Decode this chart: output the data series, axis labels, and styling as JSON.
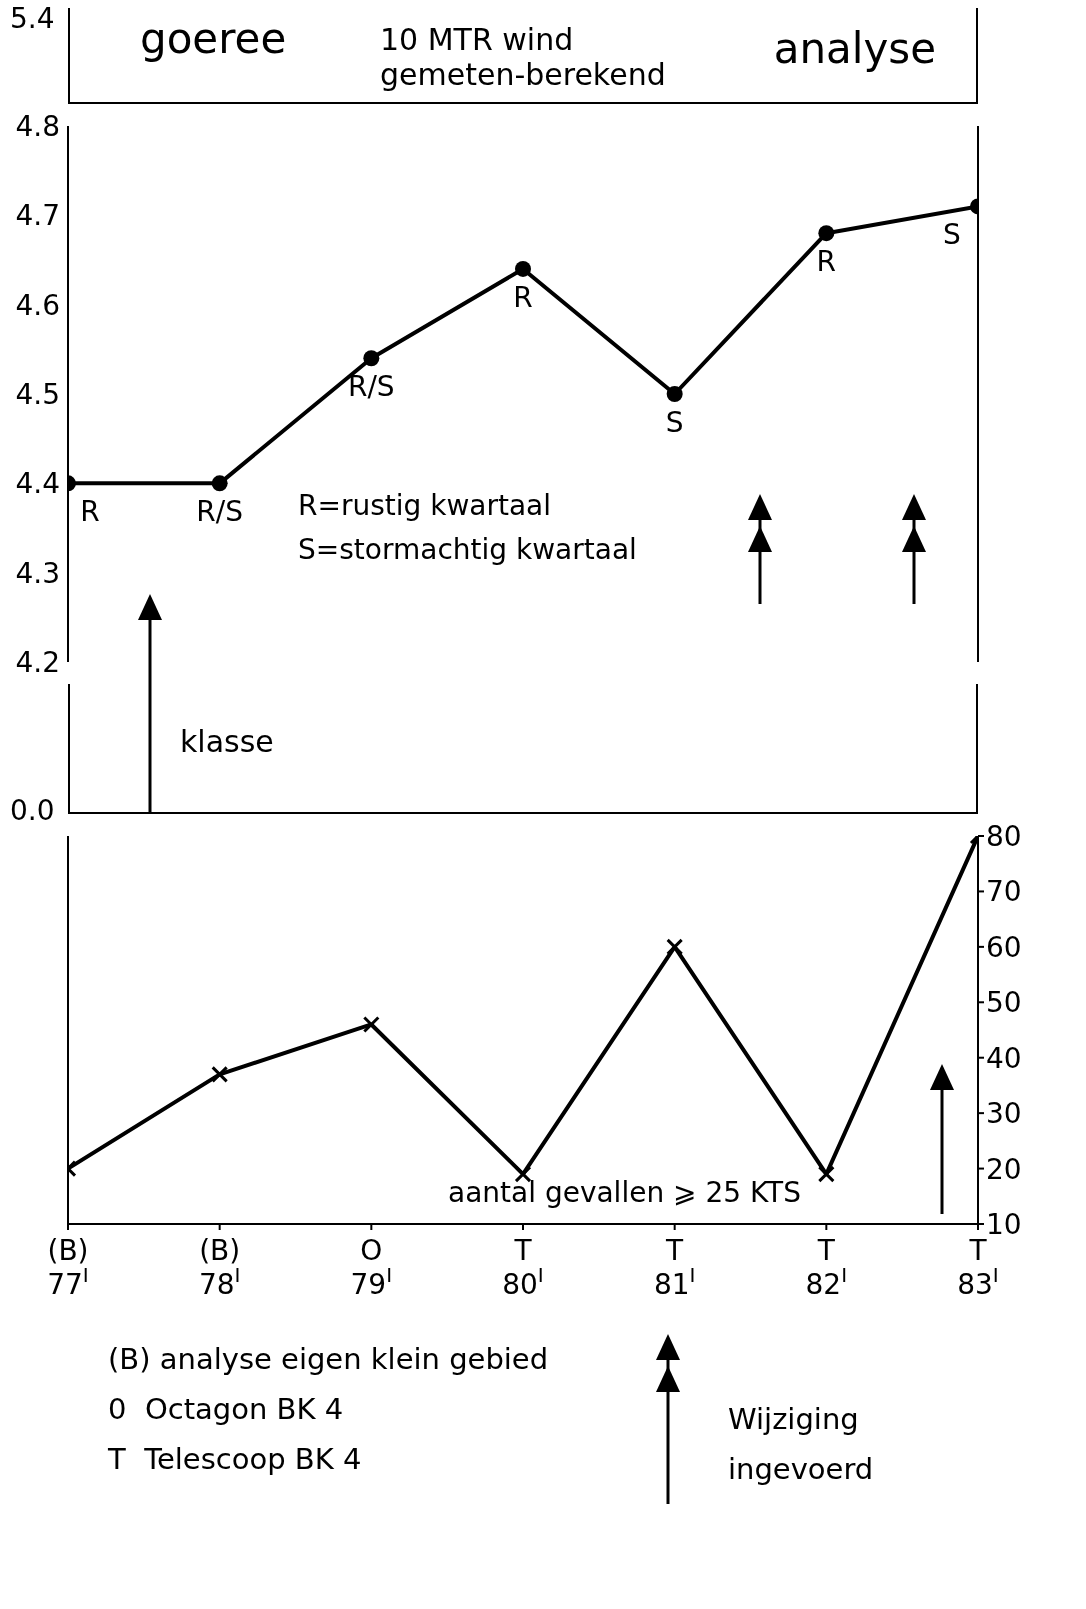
{
  "chart_data": [
    {
      "type": "line",
      "title": "10 MTR wind gemeten-berekend",
      "categories": [
        "(B) 77$^{I}$",
        "(B) 78$^{I}$",
        "O 79$^{I}$",
        "T 80$^{I}$",
        "T 81$^{I}$",
        "T 82$^{I}$",
        "T 83$^{I}$"
      ],
      "values": [
        4.4,
        4.4,
        4.54,
        4.64,
        4.5,
        4.68,
        4.71
      ],
      "color": "#000000",
      "marker": "circle",
      "line_style": "solid",
      "ylim": [
        4.2,
        4.8
      ],
      "yticks": [
        4.2,
        4.3,
        4.4,
        4.5,
        4.6,
        4.7,
        4.8
      ],
      "tick_labels": "y",
      "annotations": [
        "goeree",
        "analyse",
        "5.4",
        "R=rustig kwartaal",
        "S=stormachtig kwartaal",
        {
          "text": "R",
          "x": "(B) 77$^{I}$",
          "y": 4.4
        },
        {
          "text": "R/S",
          "x": "(B) 78$^{I}$",
          "y": 4.4
        },
        {
          "text": "R/S",
          "x": "O 79$^{I}$",
          "y": 4.54
        },
        {
          "text": "R",
          "x": "T 80$^{I}$",
          "y": 4.64
        },
        {
          "text": "S",
          "x": "T 81$^{I}$",
          "y": 4.5
        },
        {
          "text": "R",
          "x": "T 82$^{I}$",
          "y": 4.68
        },
        {
          "text": "S",
          "x": "T 83$^{I}$",
          "y": 4.71
        }
      ]
    },
    {
      "type": "line",
      "categories": [
        "(B) 77$^{I}$",
        "(B) 78$^{I}$",
        "O 79$^{I}$",
        "T 80$^{I}$",
        "T 81$^{I}$",
        "T 82$^{I}$",
        "T 83$^{I}$"
      ],
      "values": [
        20,
        37,
        46,
        19,
        60,
        19,
        80
      ],
      "color": "#000000",
      "marker": "cross",
      "line_style": "solid",
      "ylim": [
        10,
        80
      ],
      "yticks": [
        10,
        20,
        30,
        40,
        50,
        60,
        70,
        80
      ],
      "annotations": [
        "0.0",
        "klasse",
        "aantal gevallen ⩾ 25 KTS",
        "(B) analyse eigen klein gebied",
        "0  Octagon BK 4",
        "T  Telescoop BK 4",
        "Wijziging ingevoerd"
      ]
    }
  ]
}
